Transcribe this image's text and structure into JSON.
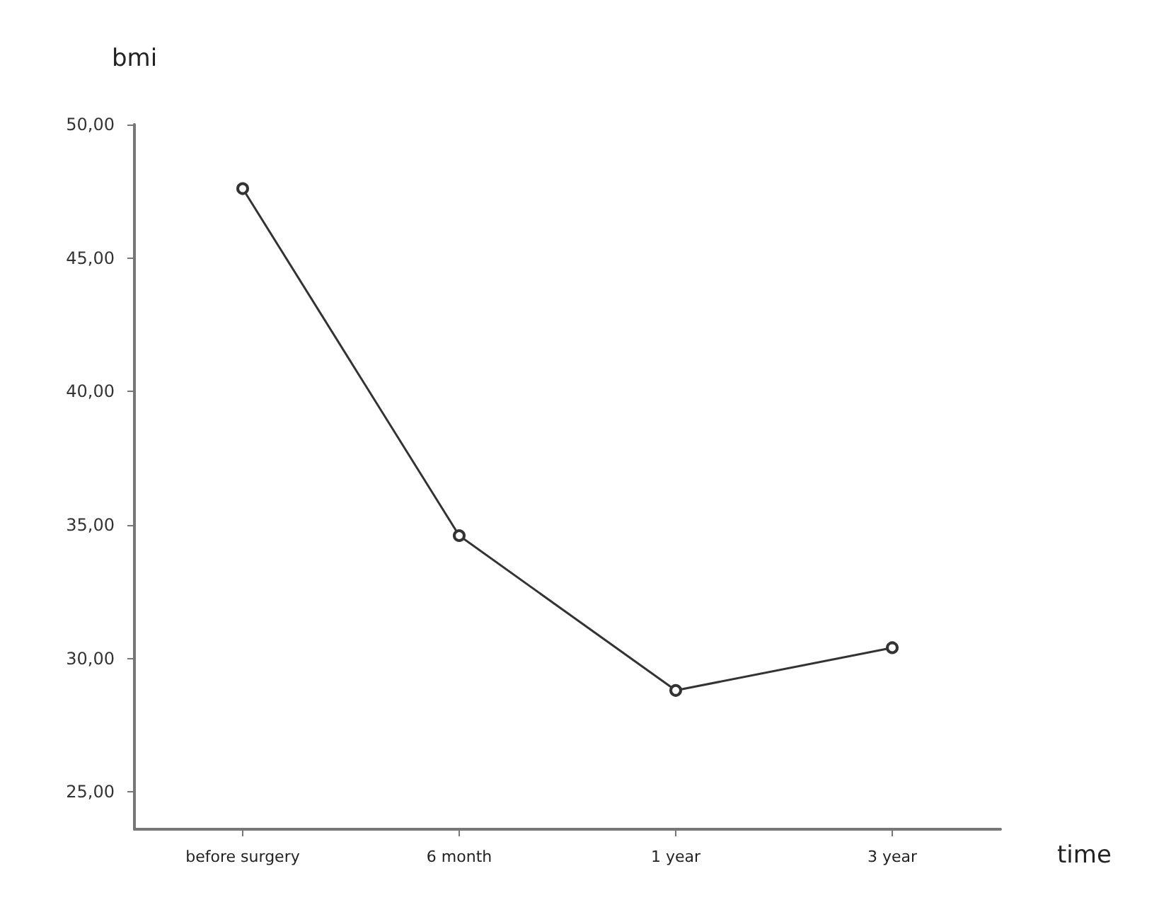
{
  "chart_data": {
    "type": "line",
    "xlabel": "time",
    "ylabel": "bmi",
    "categories": [
      "before surgery",
      "6 month",
      "1 year",
      "3 year"
    ],
    "series": [
      {
        "color": "#333333",
        "values": [
          47.6,
          34.6,
          28.8,
          30.4
        ]
      }
    ],
    "ylim": [
      23.6,
      50
    ],
    "yticks": [
      {
        "value": 25,
        "label": "25,00"
      },
      {
        "value": 30,
        "label": "30,00"
      },
      {
        "value": 35,
        "label": "35,00"
      },
      {
        "value": 40,
        "label": "40,00"
      },
      {
        "value": 45,
        "label": "45,00"
      },
      {
        "value": 50,
        "label": "50,00"
      }
    ],
    "grid": false,
    "marker": "circle",
    "line_style": "solid"
  }
}
